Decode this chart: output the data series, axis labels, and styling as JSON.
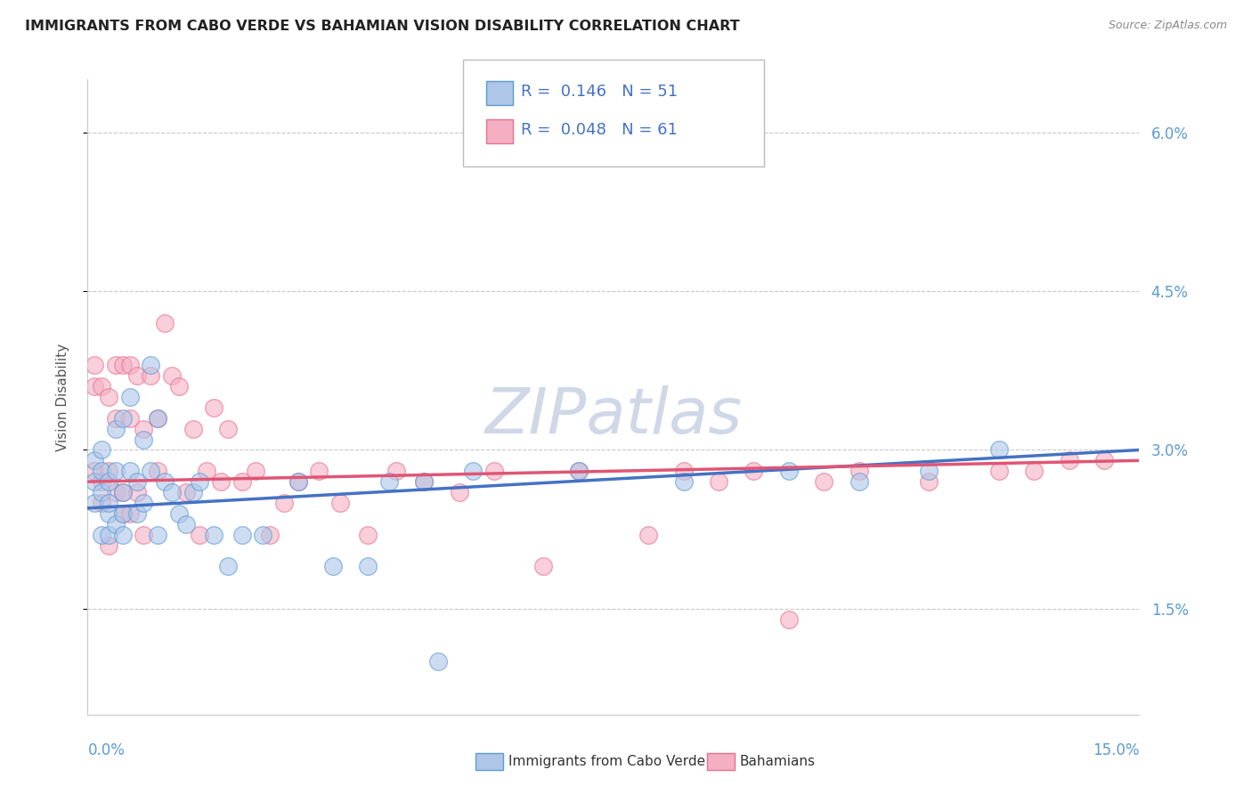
{
  "title": "IMMIGRANTS FROM CABO VERDE VS BAHAMIAN VISION DISABILITY CORRELATION CHART",
  "source": "Source: ZipAtlas.com",
  "ylabel": "Vision Disability",
  "xmin": 0.0,
  "xmax": 0.15,
  "ymin": 0.005,
  "ymax": 0.065,
  "yticks": [
    0.015,
    0.03,
    0.045,
    0.06
  ],
  "ytick_labels": [
    "1.5%",
    "3.0%",
    "4.5%",
    "6.0%"
  ],
  "cabo_verde_color": "#aec6e8",
  "bahamian_color": "#f4afc3",
  "cabo_verde_edge_color": "#5b9bd5",
  "bahamian_edge_color": "#e8718d",
  "cabo_verde_line_color": "#4472c4",
  "bahamian_line_color": "#e05575",
  "watermark": "ZIPatlas",
  "watermark_color": "#d0d8e8",
  "cabo_verde_x": [
    0.001,
    0.001,
    0.001,
    0.002,
    0.002,
    0.002,
    0.002,
    0.003,
    0.003,
    0.003,
    0.003,
    0.004,
    0.004,
    0.004,
    0.005,
    0.005,
    0.005,
    0.005,
    0.006,
    0.006,
    0.007,
    0.007,
    0.008,
    0.008,
    0.009,
    0.009,
    0.01,
    0.01,
    0.011,
    0.012,
    0.013,
    0.014,
    0.015,
    0.016,
    0.018,
    0.02,
    0.022,
    0.025,
    0.03,
    0.035,
    0.04,
    0.043,
    0.048,
    0.05,
    0.055,
    0.07,
    0.085,
    0.1,
    0.11,
    0.12,
    0.13
  ],
  "cabo_verde_y": [
    0.025,
    0.027,
    0.029,
    0.022,
    0.026,
    0.028,
    0.03,
    0.024,
    0.027,
    0.025,
    0.022,
    0.028,
    0.032,
    0.023,
    0.033,
    0.026,
    0.024,
    0.022,
    0.028,
    0.035,
    0.027,
    0.024,
    0.031,
    0.025,
    0.038,
    0.028,
    0.033,
    0.022,
    0.027,
    0.026,
    0.024,
    0.023,
    0.026,
    0.027,
    0.022,
    0.019,
    0.022,
    0.022,
    0.027,
    0.019,
    0.019,
    0.027,
    0.027,
    0.01,
    0.028,
    0.028,
    0.027,
    0.028,
    0.027,
    0.028,
    0.03
  ],
  "bahamian_x": [
    0.001,
    0.001,
    0.001,
    0.002,
    0.002,
    0.002,
    0.003,
    0.003,
    0.003,
    0.004,
    0.004,
    0.004,
    0.005,
    0.005,
    0.005,
    0.006,
    0.006,
    0.006,
    0.007,
    0.007,
    0.008,
    0.008,
    0.009,
    0.01,
    0.01,
    0.011,
    0.012,
    0.013,
    0.014,
    0.015,
    0.016,
    0.017,
    0.018,
    0.019,
    0.02,
    0.022,
    0.024,
    0.026,
    0.028,
    0.03,
    0.033,
    0.036,
    0.04,
    0.044,
    0.048,
    0.053,
    0.058,
    0.065,
    0.07,
    0.08,
    0.085,
    0.09,
    0.095,
    0.1,
    0.105,
    0.11,
    0.12,
    0.13,
    0.135,
    0.14,
    0.145
  ],
  "bahamian_y": [
    0.036,
    0.028,
    0.038,
    0.025,
    0.036,
    0.027,
    0.035,
    0.028,
    0.021,
    0.038,
    0.026,
    0.033,
    0.038,
    0.026,
    0.024,
    0.033,
    0.024,
    0.038,
    0.037,
    0.026,
    0.032,
    0.022,
    0.037,
    0.033,
    0.028,
    0.042,
    0.037,
    0.036,
    0.026,
    0.032,
    0.022,
    0.028,
    0.034,
    0.027,
    0.032,
    0.027,
    0.028,
    0.022,
    0.025,
    0.027,
    0.028,
    0.025,
    0.022,
    0.028,
    0.027,
    0.026,
    0.028,
    0.019,
    0.028,
    0.022,
    0.028,
    0.027,
    0.028,
    0.014,
    0.027,
    0.028,
    0.027,
    0.028,
    0.028,
    0.029,
    0.029
  ],
  "line_cv_x0": 0.0,
  "line_cv_y0": 0.0245,
  "line_cv_x1": 0.15,
  "line_cv_y1": 0.03,
  "line_bh_x0": 0.0,
  "line_bh_y0": 0.027,
  "line_bh_x1": 0.15,
  "line_bh_y1": 0.029
}
